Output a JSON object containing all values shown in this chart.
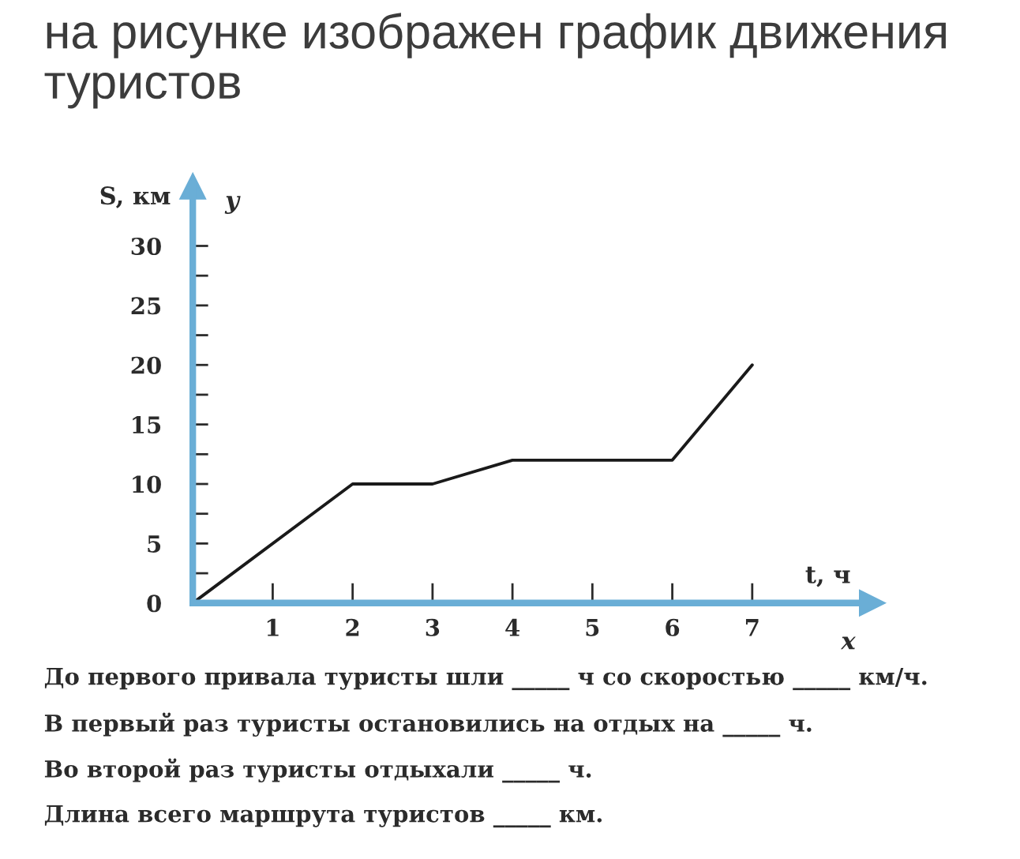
{
  "chart_data": {
    "type": "line",
    "title": "на рисунке изображен график движения туристов",
    "xlabel": "t, ч",
    "ylabel": "S, км",
    "annotations": [
      "y",
      "x",
      "До первого привала туристы шли _____ ч со скоростью _____ км/ч.",
      "В первый раз туристы остановились на отдых на _____ ч.",
      "Во второй раз туристы отдыхали _____ ч.",
      "Длина всего маршрута туристов _____ км."
    ],
    "x": [
      0,
      2,
      3,
      4,
      6,
      7
    ],
    "series": [
      {
        "color": "#1a1a1a",
        "values": [
          0,
          10,
          10,
          12,
          12,
          20
        ]
      }
    ],
    "xlim": [
      0,
      8.5
    ],
    "ylim": [
      0,
      35
    ],
    "xticks": [
      1,
      2,
      3,
      4,
      5,
      6,
      7
    ],
    "yticks": [
      0,
      {
        "value": 2.5,
        "label": null
      },
      5,
      {
        "value": 7.5,
        "label": null
      },
      10,
      {
        "value": 12.5,
        "label": null
      },
      15,
      {
        "value": 17.5,
        "label": null
      },
      20,
      {
        "value": 22.5,
        "label": null
      },
      25,
      {
        "value": 27.5,
        "label": null
      },
      30
    ]
  }
}
